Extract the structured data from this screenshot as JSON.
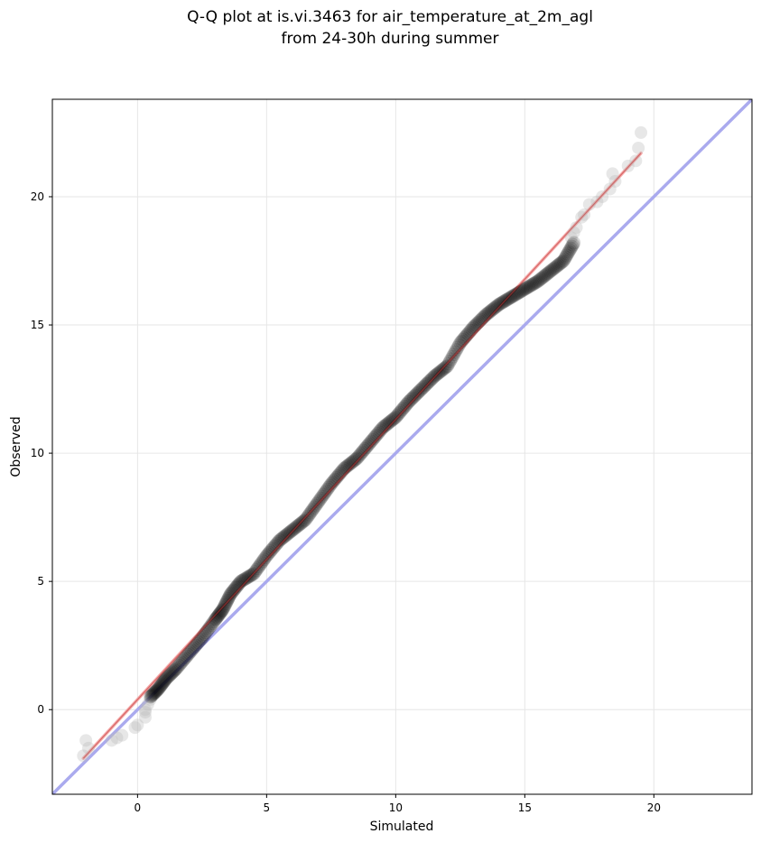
{
  "chart_data": {
    "type": "scatter",
    "title_lines": [
      "Q-Q plot at is.vi.3463 for air_temperature_at_2m_agl",
      "from 24-30h during summer"
    ],
    "xlabel": "Simulated",
    "ylabel": "Observed",
    "xlim": [
      -3.3,
      23.8
    ],
    "ylim": [
      -3.3,
      23.8
    ],
    "xticks": [
      0,
      5,
      10,
      15,
      20
    ],
    "yticks": [
      0,
      5,
      10,
      15,
      20
    ],
    "grid": true,
    "reference_line": {
      "type": "identity",
      "color": "#aaaaee"
    },
    "fit_line": {
      "color": "#f4a6a6",
      "x": [
        -2.1,
        19.5
      ],
      "y": [
        -1.9,
        21.7
      ]
    },
    "point_color": "#000000",
    "outlier_color": "#bbbbbb",
    "outliers": [
      [
        -2.0,
        -1.2
      ],
      [
        -2.1,
        -1.8
      ],
      [
        -1.9,
        -1.5
      ],
      [
        -1.0,
        -1.2
      ],
      [
        -0.8,
        -1.1
      ],
      [
        -0.6,
        -1.0
      ],
      [
        -0.1,
        -0.7
      ],
      [
        0.0,
        -0.6
      ],
      [
        0.3,
        -0.3
      ],
      [
        0.3,
        -0.1
      ],
      [
        0.3,
        0.0
      ],
      [
        0.4,
        0.2
      ],
      [
        0.5,
        0.4
      ],
      [
        17.5,
        19.7
      ],
      [
        17.3,
        19.3
      ],
      [
        17.2,
        19.2
      ],
      [
        16.9,
        18.6
      ],
      [
        16.8,
        18.4
      ],
      [
        17.0,
        18.8
      ],
      [
        17.8,
        19.8
      ],
      [
        18.0,
        20.0
      ],
      [
        18.3,
        20.3
      ],
      [
        18.5,
        20.6
      ],
      [
        18.4,
        20.9
      ],
      [
        19.0,
        21.2
      ],
      [
        19.3,
        21.4
      ],
      [
        19.4,
        21.9
      ],
      [
        19.5,
        22.5
      ]
    ],
    "quantile_curve": [
      [
        0.5,
        0.5
      ],
      [
        0.8,
        0.8
      ],
      [
        1.1,
        1.2
      ],
      [
        1.5,
        1.6
      ],
      [
        2.0,
        2.2
      ],
      [
        2.5,
        2.8
      ],
      [
        3.0,
        3.5
      ],
      [
        3.3,
        3.9
      ],
      [
        3.6,
        4.5
      ],
      [
        4.0,
        5.0
      ],
      [
        4.5,
        5.3
      ],
      [
        5.0,
        6.0
      ],
      [
        5.5,
        6.6
      ],
      [
        6.0,
        7.0
      ],
      [
        6.5,
        7.4
      ],
      [
        7.0,
        8.1
      ],
      [
        7.5,
        8.8
      ],
      [
        8.0,
        9.4
      ],
      [
        8.5,
        9.8
      ],
      [
        9.0,
        10.4
      ],
      [
        9.5,
        11.0
      ],
      [
        10.0,
        11.4
      ],
      [
        10.5,
        12.0
      ],
      [
        11.0,
        12.5
      ],
      [
        11.5,
        13.0
      ],
      [
        12.0,
        13.4
      ],
      [
        12.5,
        14.3
      ],
      [
        13.0,
        14.9
      ],
      [
        13.5,
        15.4
      ],
      [
        14.0,
        15.8
      ],
      [
        14.5,
        16.1
      ],
      [
        15.0,
        16.4
      ],
      [
        15.5,
        16.7
      ],
      [
        16.0,
        17.1
      ],
      [
        16.5,
        17.5
      ],
      [
        16.9,
        18.2
      ]
    ]
  }
}
